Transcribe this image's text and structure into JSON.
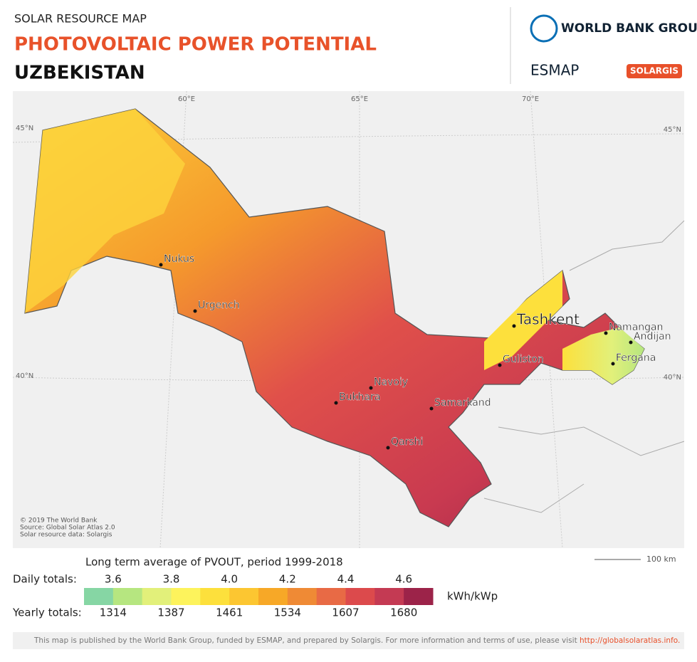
{
  "header": {
    "kicker": "SOLAR RESOURCE MAP",
    "title": "PHOTOVOLTAIC POWER POTENTIAL",
    "country": "UZBEKISTAN",
    "logos": [
      "WORLD BANK GROUP",
      "ESMAP",
      "SOLARGIS"
    ]
  },
  "map": {
    "graticule": [
      "60°E",
      "65°E",
      "70°E",
      "45°N",
      "45°N",
      "40°N",
      "40°N"
    ],
    "cities": [
      "Nukus",
      "Urgench",
      "Tashkent",
      "Namangan",
      "Andijan",
      "Fergana",
      "Guliston",
      "Navoiy",
      "Bukhara",
      "Samarkand",
      "Qarshi"
    ],
    "credits": [
      "© 2019 The World Bank",
      "Source: Global Solar Atlas 2.0",
      "Solar resource data: Solargis"
    ],
    "scale": "100 km"
  },
  "legend": {
    "title": "Long term average of PVOUT, period 1999-2018",
    "daily_label": "Daily totals:",
    "daily": [
      "3.6",
      "3.8",
      "4.0",
      "4.2",
      "4.4",
      "4.6"
    ],
    "yearly_label": "Yearly totals:",
    "yearly": [
      "1314",
      "1387",
      "1461",
      "1534",
      "1607",
      "1680"
    ],
    "unit": "kWh/kWp",
    "colors": [
      "#86d6a4",
      "#b6e680",
      "#e2f07a",
      "#fdf35c",
      "#fde03c",
      "#fcc631",
      "#f7a827",
      "#ef8a35",
      "#e86a45",
      "#dc4a4c",
      "#c43a53",
      "#9c2349"
    ]
  },
  "footer": {
    "text": "This map is published by the World Bank Group, funded by ESMAP, and prepared by Solargis. For more information and terms of use, please visit ",
    "link": "http://globalsolaratlas.info."
  }
}
